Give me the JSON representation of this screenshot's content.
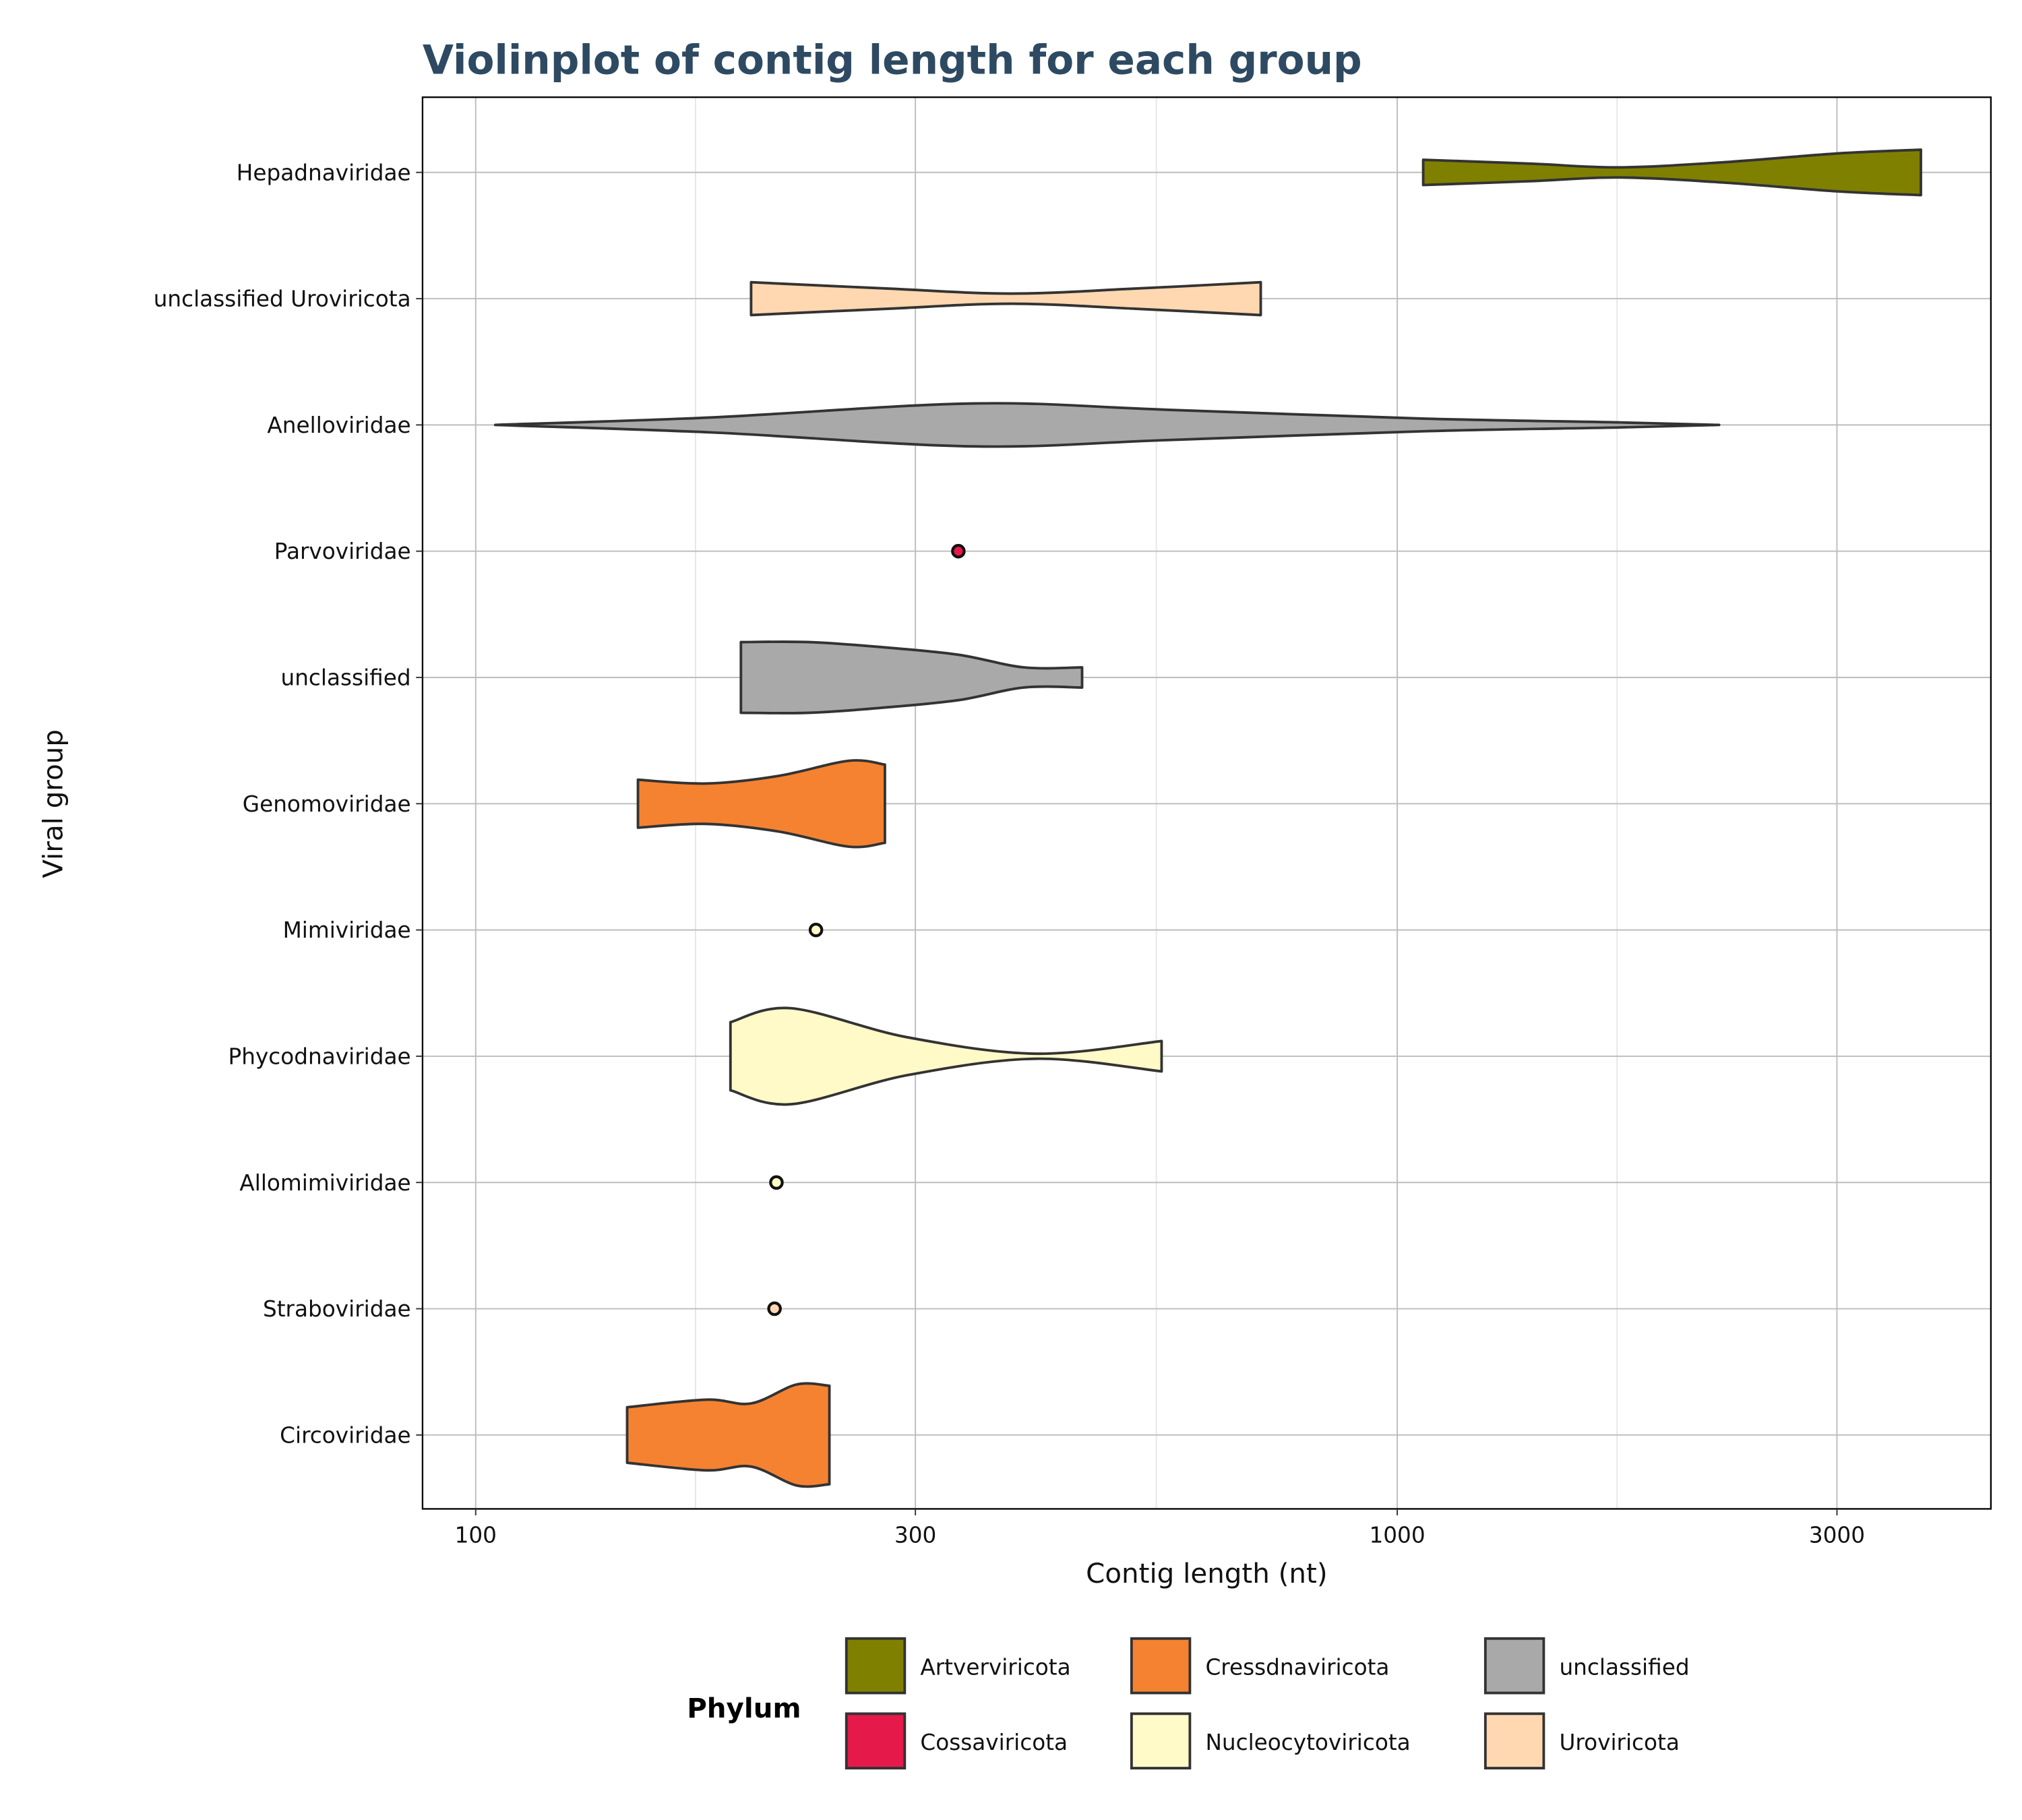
{
  "chart_data": {
    "type": "violin",
    "title": "Violinplot of contig length for each group",
    "xlabel": "Contig length (nt)",
    "ylabel": "Viral group",
    "x_scale": "log10",
    "xlim": [
      89,
      4500
    ],
    "x_ticks": [
      100,
      300,
      1000,
      3000
    ],
    "x_tick_labels": [
      "100",
      "300",
      "1000",
      "3000"
    ],
    "grid": true,
    "categories": [
      "Hepadnaviridae",
      "unclassified Uroviricota",
      "Anelloviridae",
      "Parvoviridae",
      "unclassified",
      "Genomoviridae",
      "Mimiviridae",
      "Phycodnaviridae",
      "Allomimiviridae",
      "Straboviridae",
      "Circoviridae"
    ],
    "groups": [
      {
        "name": "Hepadnaviridae",
        "phylum": "Artverviricota",
        "profile": [
          [
            1067,
            0.1
          ],
          [
            1390,
            0.07
          ],
          [
            1740,
            0.04
          ],
          [
            2255,
            0.08
          ],
          [
            3000,
            0.15
          ],
          [
            3700,
            0.18
          ]
        ]
      },
      {
        "name": "unclassified Uroviricota",
        "phylum": "Uroviricota",
        "profile": [
          [
            199,
            0.13
          ],
          [
            280,
            0.08
          ],
          [
            381,
            0.04
          ],
          [
            520,
            0.08
          ],
          [
            711,
            0.13
          ]
        ]
      },
      {
        "name": "Anelloviridae",
        "phylum": "unclassified",
        "profile": [
          [
            105,
            0.0
          ],
          [
            181,
            0.06
          ],
          [
            346,
            0.17
          ],
          [
            563,
            0.12
          ],
          [
            1070,
            0.05
          ],
          [
            1743,
            0.02
          ],
          [
            2235,
            0.0
          ]
        ]
      },
      {
        "name": "Parvoviridae",
        "phylum": "Cossaviricota",
        "point": 334
      },
      {
        "name": "unclassified",
        "phylum": "unclassified",
        "profile": [
          [
            194,
            0.28
          ],
          [
            230,
            0.28
          ],
          [
            276,
            0.24
          ],
          [
            334,
            0.18
          ],
          [
            393,
            0.08
          ],
          [
            455,
            0.08
          ]
        ]
      },
      {
        "name": "Genomoviridae",
        "phylum": "Cressdnaviricota",
        "profile": [
          [
            150,
            0.19
          ],
          [
            178,
            0.16
          ],
          [
            213,
            0.22
          ],
          [
            254,
            0.34
          ],
          [
            278,
            0.31
          ]
        ]
      },
      {
        "name": "Mimiviridae",
        "phylum": "Nucleocytoviricota",
        "point": 234
      },
      {
        "name": "Phycodnaviridae",
        "phylum": "Nucleocytoviricota",
        "profile": [
          [
            189,
            0.27
          ],
          [
            220,
            0.38
          ],
          [
            294,
            0.15
          ],
          [
            406,
            0.02
          ],
          [
            555,
            0.12
          ]
        ]
      },
      {
        "name": "Allomimiviridae",
        "phylum": "Nucleocytoviricota",
        "point": 212
      },
      {
        "name": "Straboviridae",
        "phylum": "Uroviricota",
        "point": 211
      },
      {
        "name": "Circoviridae",
        "phylum": "Cressdnaviricota",
        "profile": [
          [
            146,
            0.22
          ],
          [
            178,
            0.28
          ],
          [
            199,
            0.25
          ],
          [
            223,
            0.4
          ],
          [
            242,
            0.39
          ]
        ]
      }
    ],
    "legend": {
      "title": "Phylum",
      "placement": "bottom",
      "entries": [
        {
          "label": "Artverviricota",
          "color": "#808000"
        },
        {
          "label": "Cossaviricota",
          "color": "#E6194B"
        },
        {
          "label": "Cressdnaviricota",
          "color": "#F58231"
        },
        {
          "label": "Nucleocytoviricota",
          "color": "#FFFAC8"
        },
        {
          "label": "unclassified",
          "color": "#A9A9A9"
        },
        {
          "label": "Uroviricota",
          "color": "#FFD8B1"
        }
      ]
    }
  }
}
